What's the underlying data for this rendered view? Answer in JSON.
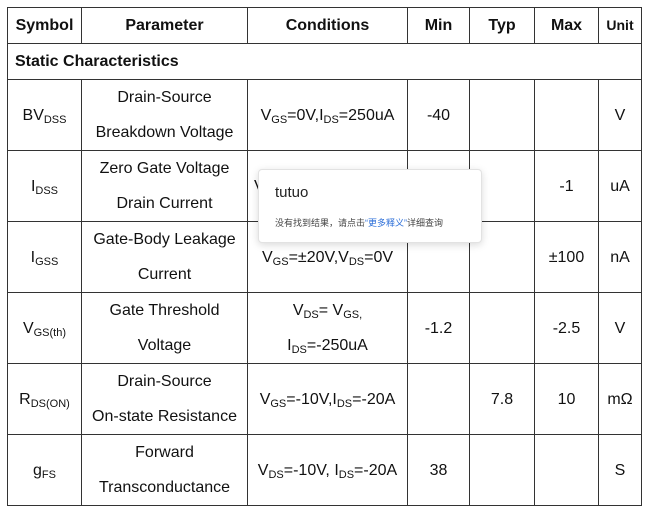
{
  "headers": {
    "symbol": "Symbol",
    "parameter": "Parameter",
    "conditions": "Conditions",
    "min": "Min",
    "typ": "Typ",
    "max": "Max",
    "unit": "Unit"
  },
  "section_title": "Static Characteristics",
  "rows": [
    {
      "symbol_main": "BV",
      "symbol_sub": "DSS",
      "param_line1": "Drain-Source",
      "param_line2": "Breakdown Voltage",
      "cond1": {
        "a_main": "V",
        "a_sub": "GS",
        "a_rest": "=0V,",
        "b_main": "I",
        "b_sub": "DS",
        "b_rest": "=250uA"
      },
      "min": "-40",
      "typ": "",
      "max": "",
      "unit": "V"
    },
    {
      "symbol_main": "I",
      "symbol_sub": "DSS",
      "param_line1": "Zero Gate Voltage",
      "param_line2": "Drain Current",
      "cond_partial": "V",
      "min": "",
      "typ": "",
      "max": "-1",
      "unit": "uA"
    },
    {
      "symbol_main": "I",
      "symbol_sub": "GSS",
      "param_line1": "Gate-Body Leakage",
      "param_line2": "Current",
      "cond1": {
        "a_main": "V",
        "a_sub": "GS",
        "a_rest": "=±20V,",
        "b_main": "V",
        "b_sub": "DS",
        "b_rest": "=0V"
      },
      "min": "",
      "typ": "",
      "max": "±100",
      "unit": "nA"
    },
    {
      "symbol_main": "V",
      "symbol_sub": "GS(th)",
      "param_line1": "Gate Threshold",
      "param_line2": "Voltage",
      "cond_line1": {
        "a_main": "V",
        "a_sub": "DS",
        "a_rest": "= V",
        "b_sub": "GS,"
      },
      "cond_line2": {
        "main": "I",
        "sub": "DS",
        "rest": "=-250uA"
      },
      "min": "-1.2",
      "typ": "",
      "max": "-2.5",
      "unit": "V"
    },
    {
      "symbol_main": "R",
      "symbol_sub": "DS(ON)",
      "param_line1": "Drain-Source",
      "param_line2": "On-state Resistance",
      "cond1": {
        "a_main": "V",
        "a_sub": "GS",
        "a_rest": "=-10V,",
        "b_main": "I",
        "b_sub": "DS",
        "b_rest": "=-20A"
      },
      "min": "",
      "typ": "7.8",
      "max": "10",
      "unit": "mΩ"
    },
    {
      "symbol_main": "g",
      "symbol_sub": "FS",
      "param_line1": "Forward",
      "param_line2": "Transconductance",
      "cond1": {
        "a_main": "V",
        "a_sub": "DS",
        "a_rest": "=-10V, ",
        "b_main": "I",
        "b_sub": "DS",
        "b_rest": "=-20A"
      },
      "min": "38",
      "typ": "",
      "max": "",
      "unit": "S"
    }
  ],
  "popup": {
    "word": "tutuo",
    "msg_prefix": "没有找到结果，请点击",
    "msg_link": "“更多释义”",
    "msg_suffix": "详细查询"
  }
}
